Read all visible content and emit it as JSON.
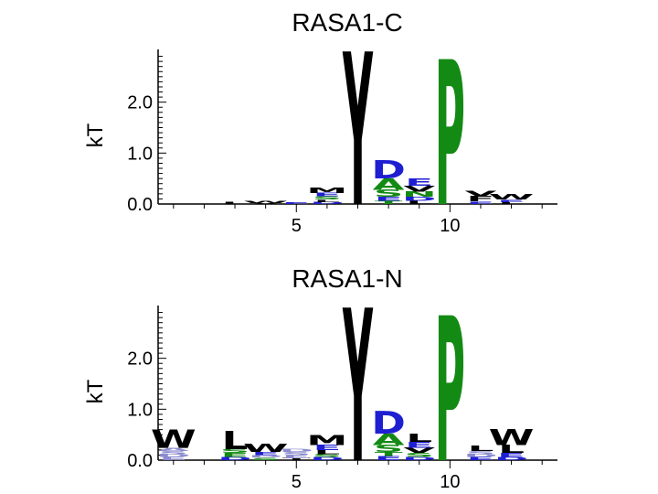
{
  "colors": {
    "acidic": "#1f1fd2",
    "polar": "#138a13",
    "hydrophobic": "#000000",
    "basic": "#1f1fd2",
    "faint": "#8c8ccf"
  },
  "chart_data": [
    {
      "type": "sequence-logo",
      "title": "RASA1-C",
      "ylabel": "kT",
      "ylim": [
        0,
        3
      ],
      "yticks": [
        "0.0",
        "1.0",
        "2.0"
      ],
      "xlim": [
        0.5,
        13.5
      ],
      "xticks": [
        "5",
        "10"
      ],
      "grid": false,
      "positions": [
        {
          "pos": 1,
          "letters": []
        },
        {
          "pos": 2,
          "letters": []
        },
        {
          "pos": 3,
          "letters": [
            {
              "char": "L",
              "height": 0.05,
              "color": "hydrophobic"
            }
          ]
        },
        {
          "pos": 4,
          "letters": [
            {
              "char": "W",
              "height": 0.04,
              "color": "hydrophobic"
            },
            {
              "char": "V",
              "height": 0.02,
              "color": "hydrophobic"
            }
          ]
        },
        {
          "pos": 5,
          "letters": [
            {
              "char": "E",
              "height": 0.03,
              "color": "acidic"
            }
          ]
        },
        {
          "pos": 6,
          "letters": [
            {
              "char": "M",
              "height": 0.1,
              "color": "hydrophobic"
            },
            {
              "char": "E",
              "height": 0.07,
              "color": "acidic"
            },
            {
              "char": "S",
              "height": 0.06,
              "color": "polar"
            },
            {
              "char": "L",
              "height": 0.05,
              "color": "hydrophobic"
            },
            {
              "char": "D",
              "height": 0.04,
              "color": "acidic"
            }
          ]
        },
        {
          "pos": 7,
          "letters": [
            {
              "char": "Y",
              "height": 3.0,
              "color": "hydrophobic"
            }
          ]
        },
        {
          "pos": 8,
          "letters": [
            {
              "char": "D",
              "height": 0.36,
              "color": "acidic"
            },
            {
              "char": "A",
              "height": 0.22,
              "color": "polar"
            },
            {
              "char": "S",
              "height": 0.14,
              "color": "polar"
            },
            {
              "char": "E",
              "height": 0.08,
              "color": "acidic"
            },
            {
              "char": "T",
              "height": 0.06,
              "color": "polar"
            }
          ]
        },
        {
          "pos": 9,
          "letters": [
            {
              "char": "E",
              "height": 0.14,
              "color": "acidic"
            },
            {
              "char": "V",
              "height": 0.12,
              "color": "hydrophobic"
            },
            {
              "char": "N",
              "height": 0.1,
              "color": "polar"
            },
            {
              "char": "D",
              "height": 0.08,
              "color": "acidic"
            },
            {
              "char": "L",
              "height": 0.06,
              "color": "hydrophobic"
            }
          ]
        },
        {
          "pos": 10,
          "letters": [
            {
              "char": "P",
              "height": 2.85,
              "color": "polar"
            }
          ]
        },
        {
          "pos": 11,
          "letters": [
            {
              "char": "F",
              "height": 0.1,
              "color": "hydrophobic"
            },
            {
              "char": "V",
              "height": 0.1,
              "color": "hydrophobic"
            },
            {
              "char": "E",
              "height": 0.05,
              "color": "acidic"
            }
          ]
        },
        {
          "pos": 12,
          "letters": [
            {
              "char": "W",
              "height": 0.1,
              "color": "hydrophobic"
            },
            {
              "char": "E",
              "height": 0.05,
              "color": "acidic"
            },
            {
              "char": "L",
              "height": 0.04,
              "color": "hydrophobic"
            }
          ]
        },
        {
          "pos": 13,
          "letters": []
        }
      ]
    },
    {
      "type": "sequence-logo",
      "title": "RASA1-N",
      "ylabel": "kT",
      "ylim": [
        0,
        3
      ],
      "yticks": [
        "0.0",
        "1.0",
        "2.0"
      ],
      "xlim": [
        0.5,
        13.5
      ],
      "xticks": [
        "5",
        "10"
      ],
      "grid": false,
      "positions": [
        {
          "pos": 1,
          "letters": [
            {
              "char": "W",
              "height": 0.36,
              "color": "hydrophobic"
            },
            {
              "char": "E",
              "height": 0.06,
              "color": "faint"
            },
            {
              "char": "D",
              "height": 0.06,
              "color": "faint"
            },
            {
              "char": "S",
              "height": 0.06,
              "color": "faint"
            },
            {
              "char": "A",
              "height": 0.06,
              "color": "faint"
            }
          ]
        },
        {
          "pos": 2,
          "letters": []
        },
        {
          "pos": 3,
          "letters": [
            {
              "char": "L",
              "height": 0.36,
              "color": "hydrophobic"
            },
            {
              "char": "E",
              "height": 0.08,
              "color": "polar"
            },
            {
              "char": "S",
              "height": 0.08,
              "color": "polar"
            },
            {
              "char": "D",
              "height": 0.06,
              "color": "acidic"
            }
          ]
        },
        {
          "pos": 4,
          "letters": [
            {
              "char": "W",
              "height": 0.16,
              "color": "hydrophobic"
            },
            {
              "char": "E",
              "height": 0.06,
              "color": "acidic"
            },
            {
              "char": "S",
              "height": 0.05,
              "color": "polar"
            },
            {
              "char": "D",
              "height": 0.05,
              "color": "faint"
            }
          ]
        },
        {
          "pos": 5,
          "letters": [
            {
              "char": "E",
              "height": 0.06,
              "color": "faint"
            },
            {
              "char": "S",
              "height": 0.06,
              "color": "faint"
            },
            {
              "char": "D",
              "height": 0.06,
              "color": "faint"
            },
            {
              "char": "T",
              "height": 0.04,
              "color": "hydrophobic"
            }
          ]
        },
        {
          "pos": 6,
          "letters": [
            {
              "char": "M",
              "height": 0.2,
              "color": "hydrophobic"
            },
            {
              "char": "E",
              "height": 0.1,
              "color": "acidic"
            },
            {
              "char": "L",
              "height": 0.08,
              "color": "hydrophobic"
            },
            {
              "char": "D",
              "height": 0.06,
              "color": "acidic"
            },
            {
              "char": "S",
              "height": 0.06,
              "color": "polar"
            }
          ]
        },
        {
          "pos": 7,
          "letters": [
            {
              "char": "Y",
              "height": 3.0,
              "color": "hydrophobic"
            }
          ]
        },
        {
          "pos": 8,
          "letters": [
            {
              "char": "D",
              "height": 0.44,
              "color": "acidic"
            },
            {
              "char": "A",
              "height": 0.22,
              "color": "polar"
            },
            {
              "char": "S",
              "height": 0.14,
              "color": "polar"
            },
            {
              "char": "E",
              "height": 0.08,
              "color": "acidic"
            },
            {
              "char": "T",
              "height": 0.08,
              "color": "polar"
            }
          ]
        },
        {
          "pos": 9,
          "letters": [
            {
              "char": "L",
              "height": 0.16,
              "color": "hydrophobic"
            },
            {
              "char": "E",
              "height": 0.12,
              "color": "acidic"
            },
            {
              "char": "V",
              "height": 0.1,
              "color": "hydrophobic"
            },
            {
              "char": "S",
              "height": 0.08,
              "color": "polar"
            },
            {
              "char": "D",
              "height": 0.06,
              "color": "acidic"
            }
          ]
        },
        {
          "pos": 10,
          "letters": [
            {
              "char": "P",
              "height": 2.85,
              "color": "polar"
            }
          ]
        },
        {
          "pos": 11,
          "letters": [
            {
              "char": "L",
              "height": 0.1,
              "color": "hydrophobic"
            },
            {
              "char": "E",
              "height": 0.06,
              "color": "acidic"
            },
            {
              "char": "D",
              "height": 0.06,
              "color": "faint"
            },
            {
              "char": "S",
              "height": 0.06,
              "color": "faint"
            }
          ]
        },
        {
          "pos": 12,
          "letters": [
            {
              "char": "W",
              "height": 0.32,
              "color": "hydrophobic"
            },
            {
              "char": "L",
              "height": 0.16,
              "color": "hydrophobic"
            },
            {
              "char": "E",
              "height": 0.08,
              "color": "acidic"
            },
            {
              "char": "D",
              "height": 0.06,
              "color": "acidic"
            }
          ]
        },
        {
          "pos": 13,
          "letters": []
        }
      ]
    }
  ]
}
